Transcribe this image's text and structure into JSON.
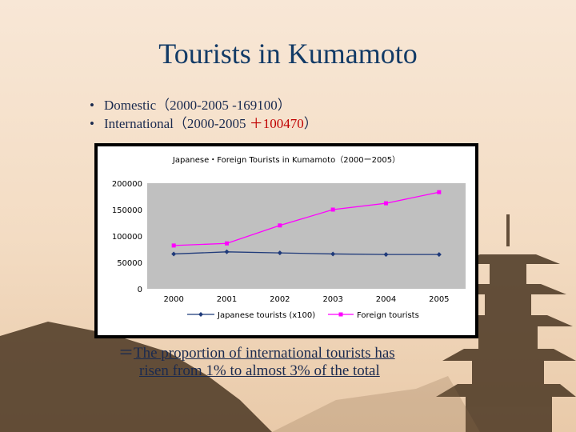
{
  "slide": {
    "title": "Tourists in Kumamoto",
    "bullets": [
      {
        "label": "Domestic（2000-2005 ",
        "value": "-169100",
        "end": "）"
      },
      {
        "label": "International（2000-2005 ",
        "value": "＋100470",
        "end": "）"
      }
    ],
    "conclusion_lead": "＝",
    "conclusion_line1": "The proportion of international tourists has",
    "conclusion_line2": " risen from 1% to almost 3% of the total"
  },
  "colors": {
    "japanese": "#1f3a7a",
    "foreign": "#ff00ff",
    "plot_bg": "#c0c0c0",
    "chart_bg": "#ffffff"
  },
  "chart_data": {
    "type": "line",
    "title": "Japanese・Foreign Tourists in Kumamoto（2000ー2005）",
    "categories": [
      "2000",
      "2001",
      "2002",
      "2003",
      "2004",
      "2005"
    ],
    "series": [
      {
        "name": "Japanese tourists (x100)",
        "values": [
          66000,
          70000,
          68000,
          66000,
          65000,
          65000
        ]
      },
      {
        "name": "Foreign tourists",
        "values": [
          82000,
          86000,
          120000,
          150000,
          162000,
          183000
        ]
      }
    ],
    "ylim": [
      0,
      200000
    ],
    "yticks": [
      "200000",
      "150000",
      "100000",
      "50000",
      "0"
    ],
    "grid": false,
    "legend": "bottom"
  }
}
